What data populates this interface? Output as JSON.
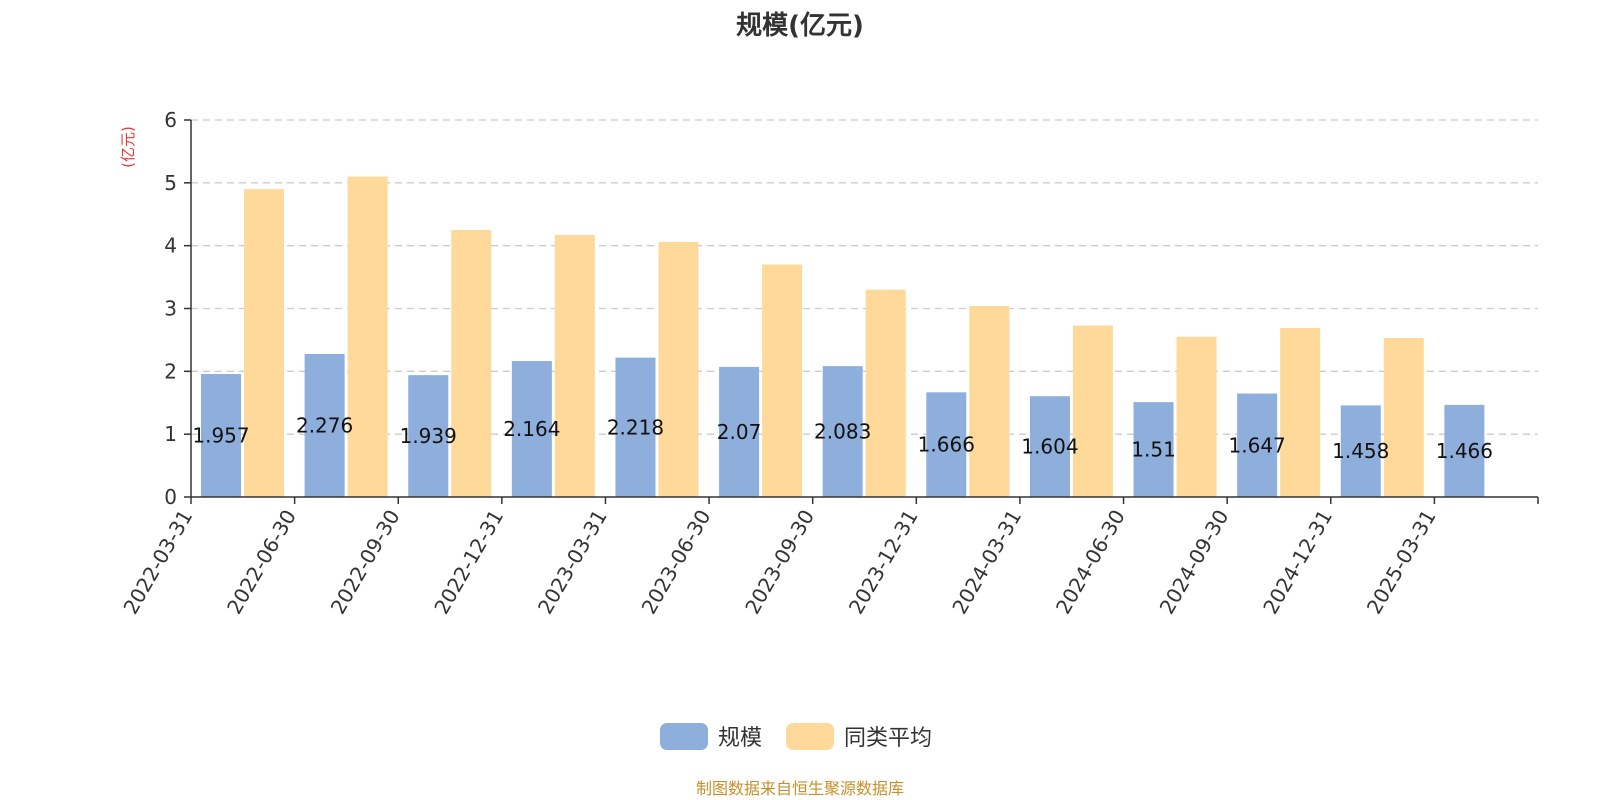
{
  "chart_data": {
    "type": "bar",
    "title": "规模(亿元)",
    "ylabel": "(亿元)",
    "xlabel": "",
    "ylim": [
      0,
      6
    ],
    "yticks": [
      0,
      1,
      2,
      3,
      4,
      5,
      6
    ],
    "grid": true,
    "legend_position": "bottom",
    "categories": [
      "2022-03-31",
      "2022-06-30",
      "2022-09-30",
      "2022-12-31",
      "2023-03-31",
      "2023-06-30",
      "2023-09-30",
      "2023-12-31",
      "2024-03-31",
      "2024-06-30",
      "2024-09-30",
      "2024-12-31",
      "2025-03-31"
    ],
    "series": [
      {
        "name": "规模",
        "color": "#8eaedb",
        "values": [
          1.957,
          2.276,
          1.939,
          2.164,
          2.218,
          2.07,
          2.083,
          1.666,
          1.604,
          1.51,
          1.647,
          1.458,
          1.466
        ],
        "labels": [
          "1.957",
          "2.276",
          "1.939",
          "2.164",
          "2.218",
          "2.07",
          "2.083",
          "1.666",
          "1.604",
          "1.51",
          "1.647",
          "1.458",
          "1.466"
        ]
      },
      {
        "name": "同类平均",
        "color": "#ffd999",
        "values": [
          4.9,
          5.1,
          4.25,
          4.17,
          4.06,
          3.7,
          3.3,
          3.04,
          2.73,
          2.55,
          2.69,
          2.53,
          null
        ]
      }
    ]
  },
  "source_note": "制图数据来自恒生聚源数据库"
}
